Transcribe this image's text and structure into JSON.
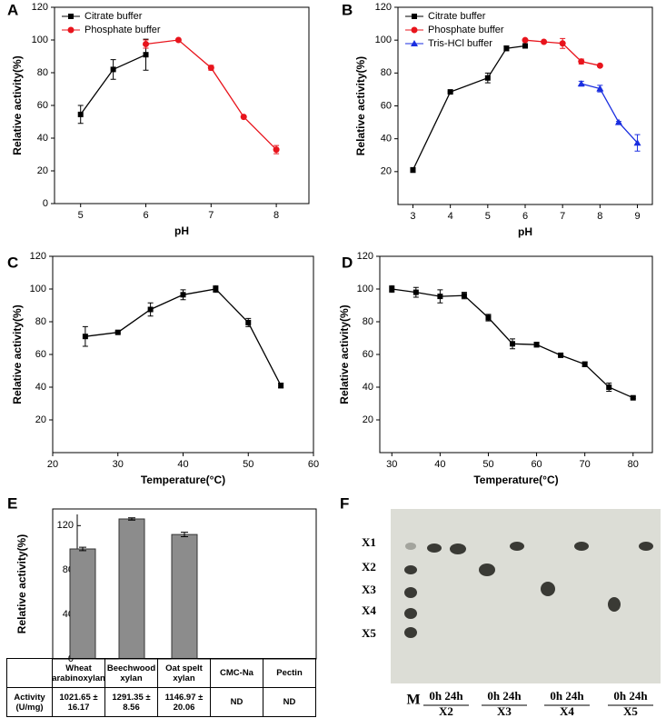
{
  "chart_data": [
    {
      "panel": "A",
      "type": "line",
      "xlabel": "pH",
      "ylabel": "Relative activity(%)",
      "xlim": [
        4.6,
        8.5
      ],
      "xticks": [
        5,
        6,
        7,
        8
      ],
      "ylim": [
        0,
        120
      ],
      "yticks": [
        0,
        20,
        40,
        60,
        80,
        100,
        120
      ],
      "legend": "upper left",
      "series": [
        {
          "name": "Citrate buffer",
          "color": "#000000",
          "marker": "square",
          "x": [
            5,
            5.5,
            6
          ],
          "values": [
            54.5,
            82,
            91
          ],
          "errors": [
            5.5,
            6,
            9.5
          ]
        },
        {
          "name": "Phosphate buffer",
          "color": "#e8141c",
          "marker": "circle",
          "x": [
            6,
            6.5,
            7,
            7.5,
            8
          ],
          "values": [
            97.5,
            100,
            83,
            53,
            33
          ],
          "errors": [
            2.5,
            0.5,
            1.5,
            0.5,
            2.5
          ]
        }
      ]
    },
    {
      "panel": "B",
      "type": "line",
      "xlabel": "pH",
      "ylabel": "Relative activity(%)",
      "xlim": [
        2.6,
        9.4
      ],
      "xticks": [
        3,
        4,
        5,
        6,
        7,
        8,
        9
      ],
      "ylim": [
        0,
        120
      ],
      "yticks": [
        20,
        40,
        60,
        80,
        100,
        120
      ],
      "legend": "upper left",
      "series": [
        {
          "name": "Citrate buffer",
          "color": "#000000",
          "marker": "square",
          "x": [
            3,
            4,
            5,
            5.5,
            6
          ],
          "values": [
            21,
            68.5,
            77,
            95,
            96.5
          ],
          "errors": [
            1.5,
            0.5,
            3,
            1.5,
            0.5
          ]
        },
        {
          "name": "Phosphate buffer",
          "color": "#e8141c",
          "marker": "circle",
          "x": [
            6,
            6.5,
            7,
            7.5,
            8
          ],
          "values": [
            100,
            99,
            98,
            87,
            84.5
          ],
          "errors": [
            0.5,
            0.5,
            3,
            1.5,
            0.5
          ]
        },
        {
          "name": "Tris-HCl buffer",
          "color": "#1a2ee0",
          "marker": "triangle",
          "x": [
            7.5,
            8,
            8.5,
            9
          ],
          "values": [
            73.5,
            70.5,
            50,
            37.5
          ],
          "errors": [
            1.5,
            2,
            0.5,
            5
          ]
        }
      ]
    },
    {
      "panel": "C",
      "type": "line",
      "xlabel": "Temperature(°C)",
      "ylabel": "Relative activity(%)",
      "xlim": [
        20,
        60
      ],
      "xticks": [
        20,
        30,
        40,
        50,
        60
      ],
      "ylim": [
        0,
        120
      ],
      "yticks": [
        20,
        40,
        60,
        80,
        100,
        120
      ],
      "series": [
        {
          "color": "#000000",
          "marker": "square",
          "x": [
            25,
            30,
            35,
            40,
            45,
            50,
            55
          ],
          "values": [
            71,
            73.5,
            87.5,
            96.5,
            100,
            79.5,
            41
          ],
          "errors": [
            6,
            0.5,
            4,
            3,
            2,
            2.5,
            1.5
          ]
        }
      ]
    },
    {
      "panel": "D",
      "type": "line",
      "xlabel": "Temperature(°C)",
      "ylabel": "Relative activity(%)",
      "xlim": [
        27.5,
        84
      ],
      "xticks": [
        30,
        40,
        50,
        60,
        70,
        80
      ],
      "ylim": [
        0,
        120
      ],
      "yticks": [
        20,
        40,
        60,
        80,
        100,
        120
      ],
      "series": [
        {
          "color": "#000000",
          "marker": "square",
          "x": [
            30,
            35,
            40,
            45,
            50,
            55,
            60,
            65,
            70,
            75,
            80
          ],
          "values": [
            100,
            98,
            95.5,
            96,
            82.5,
            66.5,
            66,
            59.5,
            54,
            40,
            33.5
          ],
          "errors": [
            2,
            3,
            4,
            2,
            2,
            3,
            1.5,
            0.5,
            1.5,
            2.5,
            0.5
          ]
        }
      ]
    },
    {
      "panel": "E",
      "type": "bar",
      "ylabel": "Relative activity(%)",
      "color": "#8c8c8c",
      "ylim": [
        0,
        135
      ],
      "yticks": [
        0,
        40,
        80,
        120
      ],
      "categories": [
        "Wheat arabinoxylan",
        "Beechwood xylan",
        "Oat spelt xylan",
        "CMC-Na",
        "Pectin"
      ],
      "values": [
        99,
        126,
        112,
        null,
        null
      ],
      "errors": [
        1.5,
        1,
        2,
        null,
        null
      ],
      "table": {
        "row_label": "Activity (U/mg)",
        "cells": [
          "1021.65 ± 16.17",
          "1291.35 ± 8.56",
          "1146.97 ± 20.06",
          "ND",
          "ND"
        ]
      }
    }
  ],
  "tlc": {
    "panel": "F",
    "standards": [
      "X1",
      "X2",
      "X3",
      "X4",
      "X5"
    ],
    "marker_lane": "M",
    "groups": [
      {
        "times": "0h 24h",
        "substrate": "X2"
      },
      {
        "times": "0h 24h",
        "substrate": "X3"
      },
      {
        "times": "0h 24h",
        "substrate": "X4"
      },
      {
        "times": "0h 24h",
        "substrate": "X5"
      }
    ]
  }
}
